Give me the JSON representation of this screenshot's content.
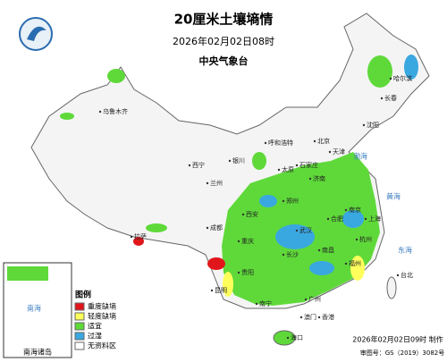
{
  "header": {
    "title": "20厘米土壤墒情",
    "time": "2026年02月02日08时",
    "agency": "中央气象台"
  },
  "legend": {
    "title": "图例",
    "items": [
      {
        "label": "重度缺墒",
        "color": "#e0161b"
      },
      {
        "label": "轻度缺墒",
        "color": "#ffff5c"
      },
      {
        "label": "适宜",
        "color": "#5fd93a"
      },
      {
        "label": "过湿",
        "color": "#3aa8e0"
      },
      {
        "label": "无资料区",
        "color": "#ffffff"
      }
    ]
  },
  "cities": [
    "哈尔滨",
    "长春",
    "沈阳",
    "乌鲁木齐",
    "呼和浩特",
    "北京",
    "天津",
    "石家庄",
    "太原",
    "银川",
    "西宁",
    "兰州",
    "济南",
    "郑州",
    "西安",
    "南京",
    "合肥",
    "上海",
    "杭州",
    "武汉",
    "成都",
    "重庆",
    "长沙",
    "南昌",
    "福州",
    "贵阳",
    "昆明",
    "南宁",
    "广州",
    "香港",
    "澳门",
    "海口",
    "台北",
    "拉萨"
  ],
  "seas": [
    "渤海",
    "黄海",
    "东海",
    "南海"
  ],
  "inset": {
    "label": "南海诸岛"
  },
  "footer": {
    "made": "2026年02月02日09时 制作",
    "approval": "审图号：GS（2019）3082号"
  }
}
